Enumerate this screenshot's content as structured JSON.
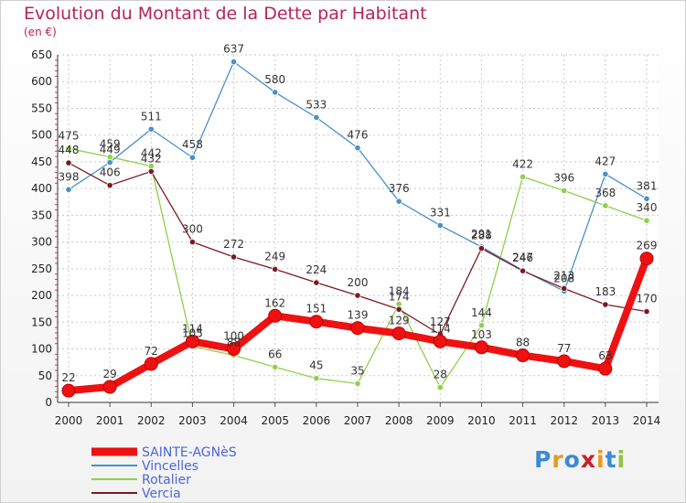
{
  "title": "Evolution du Montant de la Dette par Habitant",
  "unit_label": "(en €)",
  "logo": {
    "letters": [
      "P",
      "r",
      "o",
      "x",
      "i",
      "t",
      "i"
    ],
    "colors": [
      "#3a8ad6",
      "#e89a1a",
      "#3a8ad6",
      "#c8202a",
      "#e89a1a",
      "#3a8ad6",
      "#8cc63f"
    ]
  },
  "chart_data": {
    "type": "line",
    "title": "Evolution du Montant de la Dette par Habitant",
    "ylabel": "(en €)",
    "xlabel": "",
    "x": [
      "2000",
      "2001",
      "2002",
      "2003",
      "2004",
      "2005",
      "2006",
      "2007",
      "2008",
      "2009",
      "2010",
      "2011",
      "2012",
      "2013",
      "2014"
    ],
    "ylim": [
      0,
      650
    ],
    "yticks": [
      0,
      50,
      100,
      150,
      200,
      250,
      300,
      350,
      400,
      450,
      500,
      550,
      600,
      650
    ],
    "grid": true,
    "legend_position": "bottom-left",
    "series": [
      {
        "name": "SAINTE-AGNèS",
        "color": "#ee1111",
        "emphasis": true,
        "values": [
          22,
          29,
          72,
          114,
          100,
          162,
          151,
          139,
          129,
          114,
          103,
          88,
          77,
          63,
          269
        ]
      },
      {
        "name": "Vincelles",
        "color": "#4a90c8",
        "emphasis": false,
        "values": [
          398,
          449,
          511,
          458,
          637,
          580,
          533,
          476,
          376,
          331,
          291,
          247,
          208,
          427,
          381
        ]
      },
      {
        "name": "Rotalier",
        "color": "#8ed04a",
        "emphasis": false,
        "values": [
          475,
          459,
          442,
          105,
          88,
          66,
          45,
          35,
          184,
          28,
          144,
          422,
          396,
          368,
          340
        ]
      },
      {
        "name": "Vercia",
        "color": "#7a1a22",
        "emphasis": false,
        "values": [
          448,
          406,
          432,
          300,
          272,
          249,
          224,
          200,
          174,
          127,
          288,
          246,
          213,
          183,
          170
        ]
      }
    ]
  }
}
